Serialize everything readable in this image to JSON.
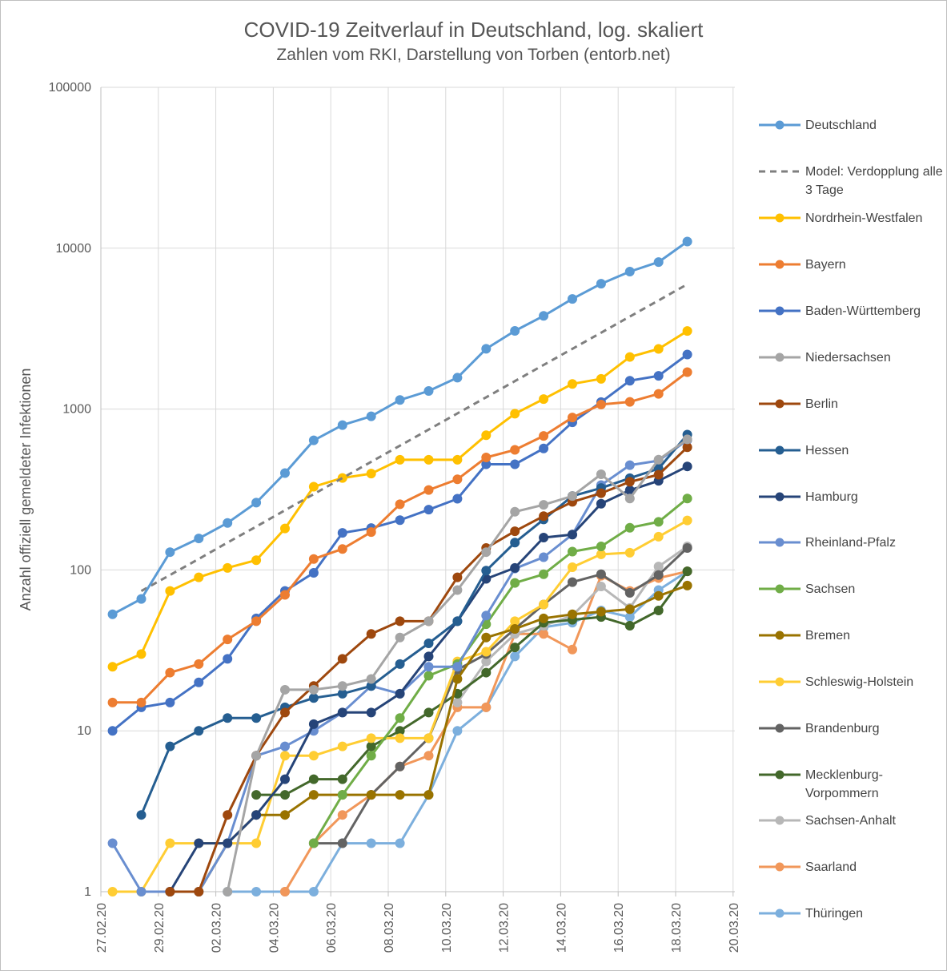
{
  "chart_data": {
    "type": "line",
    "title": "COVID-19 Zeitverlauf in Deutschland, log. skaliert",
    "subtitle": "Zahlen vom RKI, Darstellung von Torben (entorb.net)",
    "ylabel": "Anzahl offiziell gemeldeter Infektionen",
    "xlabel": "",
    "y_scale": "log",
    "ylim": [
      1,
      100000
    ],
    "y_ticks": [
      "1",
      "10",
      "100",
      "1000",
      "10000",
      "100000"
    ],
    "x_ticks": [
      "27.02.20",
      "29.02.20",
      "02.03.20",
      "04.03.20",
      "06.03.20",
      "08.03.20",
      "10.03.20",
      "12.03.20",
      "14.03.20",
      "16.03.20",
      "18.03.20",
      "20.03.20"
    ],
    "x": [
      "28.02.20",
      "29.02.20",
      "01.03.20",
      "02.03.20",
      "03.03.20",
      "04.03.20",
      "05.03.20",
      "06.03.20",
      "07.03.20",
      "08.03.20",
      "09.03.20",
      "10.03.20",
      "11.03.20",
      "12.03.20",
      "13.03.20",
      "14.03.20",
      "15.03.20",
      "16.03.20",
      "17.03.20",
      "18.03.20",
      "19.03.20",
      "20.03.20"
    ],
    "grid": true,
    "legend_position": "right",
    "series": [
      {
        "name": "Deutschland",
        "color": "#5B9BD5",
        "dash": false,
        "values": [
          53,
          66,
          129,
          157,
          196,
          262,
          400,
          639,
          795,
          902,
          1139,
          1296,
          1567,
          2369,
          3062,
          3795,
          4838,
          6012,
          7156,
          8198,
          10999,
          null
        ]
      },
      {
        "name": "Model: Verdopplung alle 3 Tage",
        "color": "#7F7F7F",
        "dash": true,
        "values": [
          null,
          74,
          93,
          117,
          148,
          186,
          235,
          296,
          373,
          470,
          592,
          746,
          940,
          1184,
          1492,
          1880,
          2368,
          2984,
          3760,
          4737,
          5968,
          null
        ]
      },
      {
        "name": "Nordrhein-Westfalen",
        "color": "#FFC000",
        "dash": false,
        "values": [
          25,
          30,
          74,
          90,
          103,
          115,
          181,
          329,
          373,
          397,
          484,
          484,
          484,
          688,
          936,
          1154,
          1433,
          1542,
          2108,
          2366,
          3057,
          null
        ]
      },
      {
        "name": "Bayern",
        "color": "#ED7D31",
        "dash": false,
        "values": [
          15,
          15,
          23,
          26,
          37,
          48,
          70,
          117,
          135,
          172,
          256,
          314,
          366,
          500,
          558,
          681,
          886,
          1067,
          1109,
          1243,
          1697,
          null
        ]
      },
      {
        "name": "Baden-Württemberg",
        "color": "#4472C4",
        "dash": false,
        "values": [
          10,
          14,
          15,
          20,
          28,
          50,
          74,
          96,
          170,
          182,
          204,
          237,
          277,
          454,
          454,
          569,
          827,
          1105,
          1500,
          1609,
          2184,
          null
        ]
      },
      {
        "name": "Niedersachsen",
        "color": "#A5A5A5",
        "dash": false,
        "values": [
          null,
          null,
          null,
          null,
          1,
          7,
          18,
          18,
          19,
          21,
          38,
          48,
          75,
          129,
          230,
          254,
          288,
          393,
          278,
          485,
          648,
          null
        ]
      },
      {
        "name": "Berlin",
        "color": "#9E480E",
        "dash": false,
        "values": [
          null,
          null,
          1,
          1,
          3,
          7,
          13,
          19,
          28,
          40,
          48,
          48,
          90,
          137,
          174,
          216,
          265,
          300,
          353,
          391,
          579,
          null
        ]
      },
      {
        "name": "Hessen",
        "color": "#255E91",
        "dash": false,
        "values": [
          null,
          3,
          8,
          10,
          12,
          12,
          14,
          16,
          17,
          19,
          26,
          35,
          48,
          99,
          148,
          206,
          288,
          323,
          372,
          426,
          694,
          null
        ]
      },
      {
        "name": "Hamburg",
        "color": "#264478",
        "dash": false,
        "values": [
          null,
          null,
          1,
          2,
          2,
          3,
          5,
          11,
          13,
          13,
          17,
          29,
          48,
          88,
          103,
          159,
          166,
          258,
          313,
          358,
          440,
          null
        ]
      },
      {
        "name": "Rheinland-Pfalz",
        "color": "#698ED0",
        "dash": false,
        "values": [
          2,
          1,
          1,
          1,
          2,
          7,
          8,
          10,
          13,
          19,
          17,
          25,
          25,
          52,
          102,
          120,
          166,
          337,
          448,
          478,
          641,
          null
        ]
      },
      {
        "name": "Sachsen",
        "color": "#70AD47",
        "dash": false,
        "values": [
          null,
          null,
          null,
          null,
          null,
          null,
          null,
          2,
          4,
          7,
          12,
          22,
          26,
          46,
          83,
          94,
          130,
          140,
          183,
          199,
          278,
          null
        ]
      },
      {
        "name": "Bremen",
        "color": "#997300",
        "dash": false,
        "values": [
          null,
          null,
          null,
          1,
          2,
          3,
          3,
          4,
          4,
          4,
          4,
          4,
          21,
          38,
          43,
          50,
          53,
          55,
          57,
          69,
          80,
          null
        ]
      },
      {
        "name": "Schleswig-Holstein",
        "color": "#FFCD33",
        "dash": false,
        "values": [
          1,
          1,
          2,
          2,
          2,
          2,
          7,
          7,
          8,
          9,
          9,
          9,
          27,
          31,
          48,
          61,
          104,
          125,
          128,
          161,
          203,
          null
        ]
      },
      {
        "name": "Brandenburg",
        "color": "#636363",
        "dash": false,
        "values": [
          null,
          null,
          null,
          null,
          null,
          null,
          null,
          2,
          2,
          4,
          6,
          9,
          24,
          30,
          43,
          61,
          84,
          94,
          72,
          93,
          137,
          null
        ]
      },
      {
        "name": "Mecklenburg-Vorpommern",
        "color": "#43682B",
        "dash": false,
        "values": [
          null,
          null,
          null,
          null,
          null,
          4,
          4,
          5,
          5,
          8,
          10,
          13,
          17,
          23,
          33,
          47,
          49,
          51,
          45,
          56,
          98,
          null
        ]
      },
      {
        "name": "Sachsen-Anhalt",
        "color": "#B7B7B7",
        "dash": false,
        "values": [
          null,
          null,
          null,
          null,
          null,
          null,
          null,
          null,
          null,
          null,
          null,
          null,
          15,
          27,
          40,
          45,
          52,
          79,
          58,
          105,
          140,
          null
        ]
      },
      {
        "name": "Saarland",
        "color": "#F1975A",
        "dash": false,
        "values": [
          null,
          null,
          null,
          null,
          null,
          null,
          1,
          2,
          3,
          4,
          6,
          7,
          14,
          14,
          40,
          40,
          32,
          92,
          74,
          89,
          98,
          null
        ]
      },
      {
        "name": "Thüringen",
        "color": "#7CAFDD",
        "dash": false,
        "values": [
          null,
          null,
          null,
          null,
          1,
          1,
          1,
          1,
          2,
          2,
          2,
          4,
          10,
          14,
          29,
          44,
          47,
          56,
          51,
          75,
          98,
          null
        ]
      }
    ]
  }
}
